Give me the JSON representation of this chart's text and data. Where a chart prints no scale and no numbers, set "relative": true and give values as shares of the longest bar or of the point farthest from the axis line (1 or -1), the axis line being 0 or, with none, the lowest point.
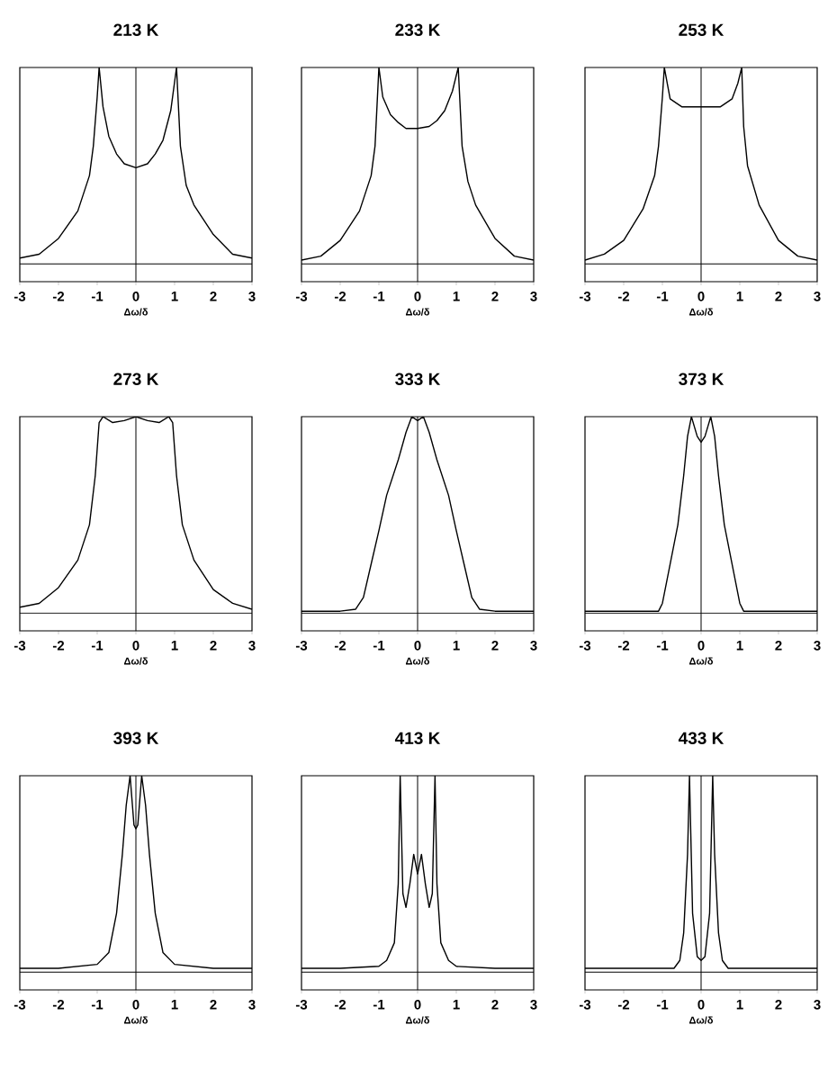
{
  "chart_data": [
    {
      "type": "line",
      "title": "213 K",
      "xlabel": "Δω/δ",
      "relative": true,
      "color": "#000000",
      "xlim": [
        -3,
        3
      ],
      "xticks": [
        -3,
        -2,
        -1,
        0,
        1,
        2,
        3
      ],
      "ref_lines": [
        {
          "axis": "x",
          "value": 0
        }
      ],
      "x": [
        -3,
        -2.5,
        -2,
        -1.5,
        -1.2,
        -1.1,
        -1,
        -0.95,
        -0.85,
        -0.7,
        -0.5,
        -0.3,
        0,
        0.3,
        0.5,
        0.7,
        0.9,
        1.05,
        1.15,
        1.3,
        1.5,
        2,
        2.5,
        3
      ],
      "values": [
        0.03,
        0.05,
        0.13,
        0.27,
        0.45,
        0.6,
        0.85,
        1,
        0.8,
        0.65,
        0.56,
        0.51,
        0.49,
        0.51,
        0.56,
        0.63,
        0.78,
        1,
        0.6,
        0.4,
        0.3,
        0.15,
        0.05,
        0.03
      ]
    },
    {
      "type": "line",
      "title": "233 K",
      "xlabel": "Δω/δ",
      "relative": true,
      "color": "#000000",
      "xlim": [
        -3,
        3
      ],
      "xticks": [
        -3,
        -2,
        -1,
        0,
        1,
        2,
        3
      ],
      "ref_lines": [
        {
          "axis": "x",
          "value": 0
        }
      ],
      "x": [
        -3,
        -2.5,
        -2,
        -1.5,
        -1.2,
        -1.1,
        -1.05,
        -1,
        -0.9,
        -0.7,
        -0.5,
        -0.3,
        0,
        0.3,
        0.5,
        0.7,
        0.9,
        1.05,
        1.15,
        1.3,
        1.5,
        2,
        2.5,
        3
      ],
      "values": [
        0.02,
        0.04,
        0.12,
        0.27,
        0.45,
        0.6,
        0.8,
        1,
        0.85,
        0.76,
        0.72,
        0.69,
        0.69,
        0.7,
        0.73,
        0.78,
        0.88,
        1,
        0.6,
        0.42,
        0.3,
        0.13,
        0.04,
        0.02
      ]
    },
    {
      "type": "line",
      "title": "253 K",
      "xlabel": "Δω/δ",
      "relative": true,
      "color": "#000000",
      "xlim": [
        -3,
        3
      ],
      "xticks": [
        -3,
        -2,
        -1,
        0,
        1,
        2,
        3
      ],
      "ref_lines": [
        {
          "axis": "x",
          "value": 0
        }
      ],
      "x": [
        -3,
        -2.5,
        -2,
        -1.5,
        -1.2,
        -1.1,
        -1,
        -0.95,
        -0.8,
        -0.5,
        0,
        0.5,
        0.8,
        0.95,
        1.05,
        1.1,
        1.2,
        1.5,
        2,
        2.5,
        3
      ],
      "values": [
        0.02,
        0.05,
        0.12,
        0.28,
        0.45,
        0.6,
        0.85,
        1,
        0.84,
        0.8,
        0.8,
        0.8,
        0.84,
        0.92,
        1,
        0.7,
        0.5,
        0.3,
        0.12,
        0.04,
        0.02
      ]
    },
    {
      "type": "line",
      "title": "273 K",
      "xlabel": "Δω/δ",
      "relative": true,
      "color": "#000000",
      "xlim": [
        -3,
        3
      ],
      "xticks": [
        -3,
        -2,
        -1,
        0,
        1,
        2,
        3
      ],
      "ref_lines": [
        {
          "axis": "x",
          "value": 0
        }
      ],
      "x": [
        -3,
        -2.5,
        -2,
        -1.5,
        -1.2,
        -1.05,
        -0.95,
        -0.85,
        -0.6,
        -0.3,
        0,
        0.3,
        0.6,
        0.85,
        0.95,
        1.05,
        1.2,
        1.5,
        2,
        2.5,
        3
      ],
      "values": [
        0.03,
        0.05,
        0.13,
        0.27,
        0.45,
        0.7,
        0.97,
        1,
        0.97,
        0.98,
        1,
        0.98,
        0.97,
        1,
        0.97,
        0.7,
        0.45,
        0.27,
        0.12,
        0.05,
        0.02
      ]
    },
    {
      "type": "line",
      "title": "333 K",
      "xlabel": "Δω/δ",
      "relative": true,
      "color": "#000000",
      "xlim": [
        -3,
        3
      ],
      "xticks": [
        -3,
        -2,
        -1,
        0,
        1,
        2,
        3
      ],
      "ref_lines": [
        {
          "axis": "x",
          "value": 0
        }
      ],
      "x": [
        -3,
        -2,
        -1.6,
        -1.4,
        -1.2,
        -1,
        -0.8,
        -0.5,
        -0.3,
        -0.15,
        0,
        0.15,
        0.3,
        0.5,
        0.8,
        1,
        1.2,
        1.4,
        1.6,
        2,
        3
      ],
      "values": [
        0.01,
        0.01,
        0.02,
        0.08,
        0.25,
        0.42,
        0.6,
        0.78,
        0.92,
        1,
        0.98,
        1,
        0.92,
        0.78,
        0.6,
        0.42,
        0.25,
        0.08,
        0.02,
        0.01,
        0.01
      ]
    },
    {
      "type": "line",
      "title": "373 K",
      "xlabel": "Δω/δ",
      "relative": true,
      "color": "#000000",
      "xlim": [
        -3,
        3
      ],
      "xticks": [
        -3,
        -2,
        -1,
        0,
        1,
        2,
        3
      ],
      "ref_lines": [
        {
          "axis": "x",
          "value": 0
        }
      ],
      "x": [
        -3,
        -2,
        -1.1,
        -1,
        -0.8,
        -0.6,
        -0.45,
        -0.35,
        -0.25,
        -0.1,
        0,
        0.1,
        0.25,
        0.35,
        0.45,
        0.6,
        0.8,
        1,
        1.1,
        2,
        3
      ],
      "values": [
        0.01,
        0.01,
        0.01,
        0.05,
        0.25,
        0.45,
        0.7,
        0.9,
        1,
        0.9,
        0.87,
        0.9,
        1,
        0.9,
        0.7,
        0.45,
        0.25,
        0.05,
        0.01,
        0.01,
        0.01
      ]
    },
    {
      "type": "line",
      "title": "393 K",
      "xlabel": "Δω/δ",
      "relative": true,
      "color": "#000000",
      "xlim": [
        -3,
        3
      ],
      "xticks": [
        -3,
        -2,
        -1,
        0,
        1,
        2,
        3
      ],
      "ref_lines": [
        {
          "axis": "x",
          "value": 0
        }
      ],
      "x": [
        -3,
        -2,
        -1,
        -0.7,
        -0.5,
        -0.35,
        -0.25,
        -0.15,
        -0.05,
        0,
        0.05,
        0.15,
        0.25,
        0.35,
        0.5,
        0.7,
        1,
        2,
        3
      ],
      "values": [
        0.02,
        0.02,
        0.04,
        0.1,
        0.3,
        0.6,
        0.85,
        1,
        0.75,
        0.73,
        0.75,
        1,
        0.85,
        0.6,
        0.3,
        0.1,
        0.04,
        0.02,
        0.02
      ]
    },
    {
      "type": "line",
      "title": "413 K",
      "xlabel": "Δω/δ",
      "relative": true,
      "color": "#000000",
      "xlim": [
        -3,
        3
      ],
      "xticks": [
        -3,
        -2,
        -1,
        0,
        1,
        2,
        3
      ],
      "ref_lines": [
        {
          "axis": "x",
          "value": 0
        }
      ],
      "x": [
        -3,
        -2,
        -1,
        -0.8,
        -0.6,
        -0.5,
        -0.45,
        -0.38,
        -0.3,
        -0.2,
        -0.1,
        0,
        0.1,
        0.2,
        0.3,
        0.38,
        0.45,
        0.5,
        0.6,
        0.8,
        1,
        2,
        3
      ],
      "values": [
        0.02,
        0.02,
        0.03,
        0.06,
        0.15,
        0.45,
        1,
        0.4,
        0.33,
        0.45,
        0.6,
        0.5,
        0.6,
        0.45,
        0.33,
        0.4,
        1,
        0.45,
        0.15,
        0.06,
        0.03,
        0.02,
        0.02
      ]
    },
    {
      "type": "line",
      "title": "433 K",
      "xlabel": "Δω/δ",
      "relative": true,
      "color": "#000000",
      "xlim": [
        -3,
        3
      ],
      "xticks": [
        -3,
        -2,
        -1,
        0,
        1,
        2,
        3
      ],
      "ref_lines": [
        {
          "axis": "x",
          "value": 0
        }
      ],
      "x": [
        -3,
        -2,
        -0.7,
        -0.55,
        -0.45,
        -0.35,
        -0.3,
        -0.22,
        -0.1,
        0,
        0.1,
        0.22,
        0.3,
        0.35,
        0.45,
        0.55,
        0.7,
        2,
        3
      ],
      "values": [
        0.02,
        0.02,
        0.02,
        0.06,
        0.2,
        0.6,
        1,
        0.3,
        0.08,
        0.06,
        0.08,
        0.3,
        1,
        0.6,
        0.2,
        0.06,
        0.02,
        0.02,
        0.02
      ]
    }
  ]
}
